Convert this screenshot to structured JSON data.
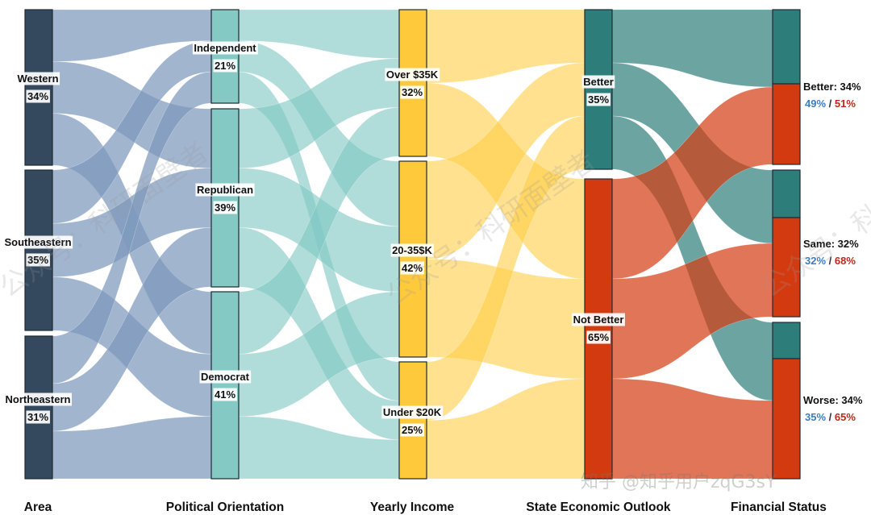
{
  "colors": {
    "area": "#34495e",
    "area_flow": "#7d98bd",
    "political": "#84c9c4",
    "political_flow": "#7fc8c3",
    "income": "#ffc93c",
    "income_flow": "#ffcf4a",
    "better": "#2d7e7a",
    "not_better": "#d43a0f",
    "blue_text": "#3c7ebf",
    "red_text": "#c0271b"
  },
  "columns": [
    {
      "key": "area",
      "title": "Area"
    },
    {
      "key": "political",
      "title": "Political Orientation"
    },
    {
      "key": "income",
      "title": "Yearly Income"
    },
    {
      "key": "outlook",
      "title": "State Economic Outlook"
    },
    {
      "key": "financial",
      "title": "Financial Status"
    }
  ],
  "nodes": {
    "area": [
      {
        "name": "Western",
        "pct": "34%"
      },
      {
        "name": "Southeastern",
        "pct": "35%"
      },
      {
        "name": "Northeastern",
        "pct": "31%"
      }
    ],
    "political": [
      {
        "name": "Independent",
        "pct": "21%"
      },
      {
        "name": "Republican",
        "pct": "39%"
      },
      {
        "name": "Democrat",
        "pct": "41%"
      }
    ],
    "income": [
      {
        "name": "Over $35K",
        "pct": "32%"
      },
      {
        "name": "20-35$K",
        "pct": "42%"
      },
      {
        "name": "Under $20K",
        "pct": "25%"
      }
    ],
    "outlook": [
      {
        "name": "Better",
        "pct": "35%"
      },
      {
        "name": "Not Better",
        "pct": "65%"
      }
    ],
    "financial": [
      {
        "name": "Better",
        "pct": "34%",
        "split_a": "49%",
        "split_b": "51%"
      },
      {
        "name": "Same",
        "pct": "32%",
        "split_a": "32%",
        "split_b": "68%"
      },
      {
        "name": "Worse",
        "pct": "34%",
        "split_a": "35%",
        "split_b": "65%"
      }
    ]
  },
  "split_separator": " / ",
  "watermarks": [
    "公众号：科研面壁者",
    "公众号：科研面壁者",
    "公众号：科研面壁者"
  ],
  "footer_watermark": "知乎 @知乎用户zqG3sY"
}
